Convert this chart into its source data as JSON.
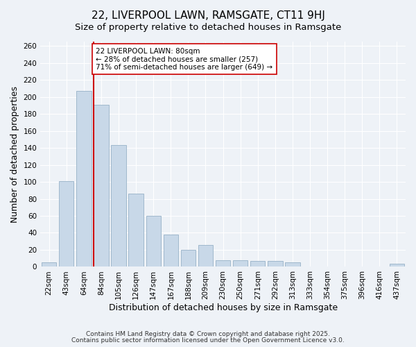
{
  "title": "22, LIVERPOOL LAWN, RAMSGATE, CT11 9HJ",
  "subtitle": "Size of property relative to detached houses in Ramsgate",
  "xlabel": "Distribution of detached houses by size in Ramsgate",
  "ylabel": "Number of detached properties",
  "bar_labels": [
    "22sqm",
    "43sqm",
    "64sqm",
    "84sqm",
    "105sqm",
    "126sqm",
    "147sqm",
    "167sqm",
    "188sqm",
    "209sqm",
    "230sqm",
    "250sqm",
    "271sqm",
    "292sqm",
    "313sqm",
    "333sqm",
    "354sqm",
    "375sqm",
    "396sqm",
    "416sqm",
    "437sqm"
  ],
  "bar_values": [
    5,
    101,
    207,
    191,
    143,
    86,
    60,
    38,
    20,
    26,
    8,
    8,
    7,
    7,
    5,
    0,
    0,
    0,
    0,
    0,
    4
  ],
  "bar_color": "#c8d8e8",
  "bar_edge_color": "#a0b8cc",
  "vline_x": 2.575,
  "vline_color": "#cc0000",
  "annotation_box_text": "22 LIVERPOOL LAWN: 80sqm\n← 28% of detached houses are smaller (257)\n71% of semi-detached houses are larger (649) →",
  "ylim": [
    0,
    265
  ],
  "yticks": [
    0,
    20,
    40,
    60,
    80,
    100,
    120,
    140,
    160,
    180,
    200,
    220,
    240,
    260
  ],
  "bg_color": "#eef2f7",
  "grid_color": "#ffffff",
  "footer_line1": "Contains HM Land Registry data © Crown copyright and database right 2025.",
  "footer_line2": "Contains public sector information licensed under the Open Government Licence v3.0.",
  "title_fontsize": 11,
  "subtitle_fontsize": 9.5,
  "tick_fontsize": 7.5,
  "label_fontsize": 9
}
